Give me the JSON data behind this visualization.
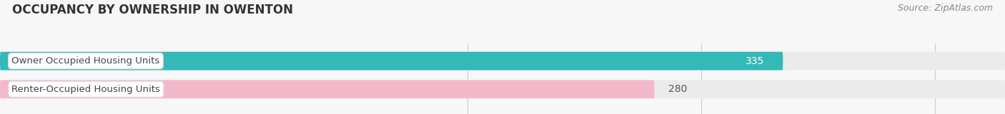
{
  "title": "OCCUPANCY BY OWNERSHIP IN OWENTON",
  "source": "Source: ZipAtlas.com",
  "categories": [
    "Owner Occupied Housing Units",
    "Renter-Occupied Housing Units"
  ],
  "values": [
    335,
    280
  ],
  "bar_colors": [
    "#35b8b8",
    "#f4b8cb"
  ],
  "value_label_colors": [
    "white",
    "#555555"
  ],
  "background_color": "#f7f7f7",
  "bar_bg_color": "#ebebeb",
  "xlim": [
    0,
    430
  ],
  "xticks": [
    200,
    300,
    400
  ],
  "title_fontsize": 12,
  "source_fontsize": 9,
  "label_fontsize": 9.5,
  "value_fontsize": 10
}
